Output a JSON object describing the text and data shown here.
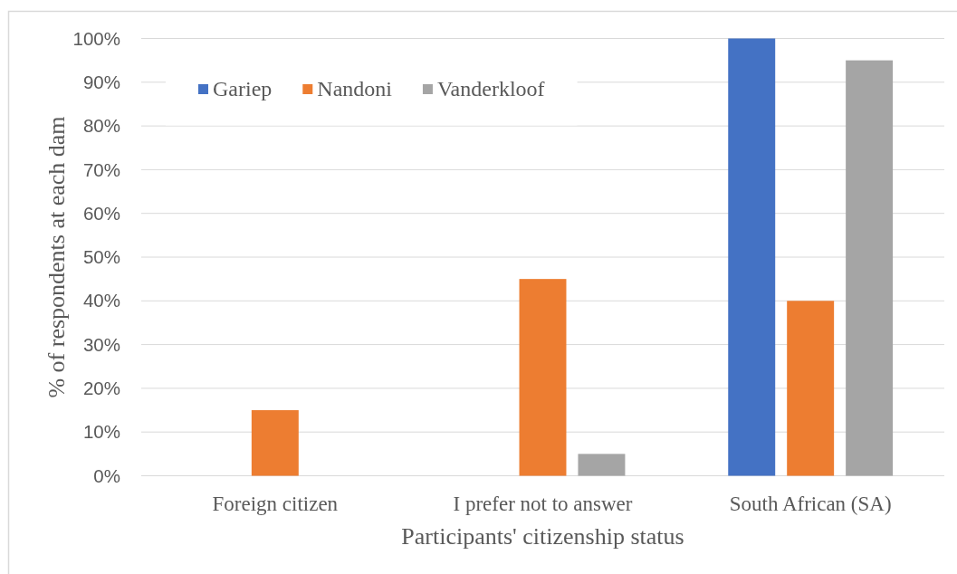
{
  "chart_data": {
    "type": "bar",
    "xlabel": "Participants' citizenship status",
    "ylabel": "% of respondents at each dam",
    "categories": [
      "Foreign citizen",
      "I prefer not to answer",
      "South African (SA)"
    ],
    "series": [
      {
        "name": "Gariep",
        "color": "#4472c4",
        "values": [
          null,
          null,
          100
        ]
      },
      {
        "name": "Nandoni",
        "color": "#ed7d31",
        "values": [
          15,
          45,
          40
        ]
      },
      {
        "name": "Vanderkloof",
        "color": "#a5a5a5",
        "values": [
          null,
          5,
          95
        ]
      }
    ],
    "ylim": [
      0,
      100
    ],
    "yticks": [
      {
        "value": 0,
        "label": "0%"
      },
      {
        "value": 10,
        "label": "10%"
      },
      {
        "value": 20,
        "label": "20%"
      },
      {
        "value": 30,
        "label": "30%"
      },
      {
        "value": 40,
        "label": "40%"
      },
      {
        "value": 50,
        "label": "50%"
      },
      {
        "value": 60,
        "label": "60%"
      },
      {
        "value": 70,
        "label": "70%"
      },
      {
        "value": 80,
        "label": "80%"
      },
      {
        "value": 90,
        "label": "90%"
      },
      {
        "value": 100,
        "label": "100%"
      }
    ],
    "grid": "y",
    "legend": "top left"
  }
}
